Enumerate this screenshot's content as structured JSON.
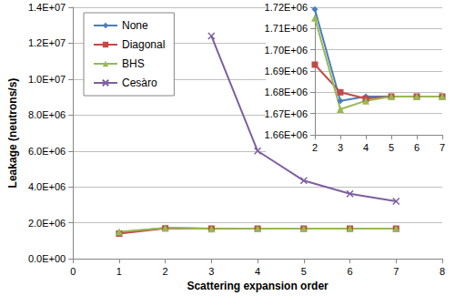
{
  "chart_data": [
    {
      "type": "line",
      "x_label": "Scattering expansion order",
      "y_label": "Leakage (neutrons/s)",
      "x": [
        1,
        2,
        3,
        4,
        5,
        6,
        7
      ],
      "series": [
        {
          "name": "None",
          "color": "#4A7EBB",
          "marker": "diamond",
          "values": [
            1460000,
            1719000,
            1676000,
            1678000,
            1678000,
            1678000,
            1678000
          ]
        },
        {
          "name": "Diagonal",
          "color": "#BE4B48",
          "marker": "square",
          "values": [
            1400000,
            1693000,
            1680000,
            1677000,
            1678000,
            1678000,
            1678000
          ]
        },
        {
          "name": "BHS",
          "color": "#98B954",
          "marker": "triangle",
          "values": [
            1500000,
            1715000,
            1672000,
            1676000,
            1678000,
            1678000,
            1678000
          ]
        },
        {
          "name": "Cesàro",
          "color": "#7D60A0",
          "marker": "x",
          "values": [
            null,
            null,
            12400000,
            6000000,
            4350000,
            3620000,
            3200000
          ]
        }
      ],
      "xlim": [
        0,
        8
      ],
      "xticks": [
        0,
        1,
        2,
        3,
        4,
        5,
        6,
        7,
        8
      ],
      "ylim": [
        0,
        14000000
      ],
      "yticks": [
        {
          "value": 0,
          "label": "0.0E+00"
        },
        {
          "value": 2000000,
          "label": "2.0E+06"
        },
        {
          "value": 4000000,
          "label": "4.0E+06"
        },
        {
          "value": 6000000,
          "label": "6.0E+06"
        },
        {
          "value": 8000000,
          "label": "8.0E+06"
        },
        {
          "value": 10000000,
          "label": "1.0E+07"
        },
        {
          "value": 12000000,
          "label": "1.2E+07"
        },
        {
          "value": 14000000,
          "label": "1.4E+07"
        }
      ],
      "grid": true,
      "legend": "upper left"
    },
    {
      "type": "line",
      "x": [
        2,
        3,
        4,
        5,
        6,
        7
      ],
      "series": [
        {
          "name": "None",
          "color": "#4A7EBB",
          "marker": "diamond",
          "values": [
            1719000,
            1676000,
            1678000,
            1678000,
            1678000,
            1678000
          ]
        },
        {
          "name": "Diagonal",
          "color": "#BE4B48",
          "marker": "square",
          "values": [
            1693000,
            1680000,
            1677000,
            1678000,
            1678000,
            1678000
          ]
        },
        {
          "name": "BHS",
          "color": "#98B954",
          "marker": "triangle",
          "values": [
            1715000,
            1672000,
            1676000,
            1678000,
            1678000,
            1678000
          ]
        }
      ],
      "xlim": [
        2,
        7
      ],
      "xticks": [
        2,
        3,
        4,
        5,
        6,
        7
      ],
      "ylim": [
        1660000,
        1720000
      ],
      "yticks": [
        {
          "value": 1660000,
          "label": "1.66E+06"
        },
        {
          "value": 1670000,
          "label": "1.67E+06"
        },
        {
          "value": 1680000,
          "label": "1.68E+06"
        },
        {
          "value": 1690000,
          "label": "1.69E+06"
        },
        {
          "value": 1700000,
          "label": "1.70E+06"
        },
        {
          "value": 1710000,
          "label": "1.71E+06"
        },
        {
          "value": 1720000,
          "label": "1.72E+06"
        }
      ],
      "grid": true
    }
  ]
}
